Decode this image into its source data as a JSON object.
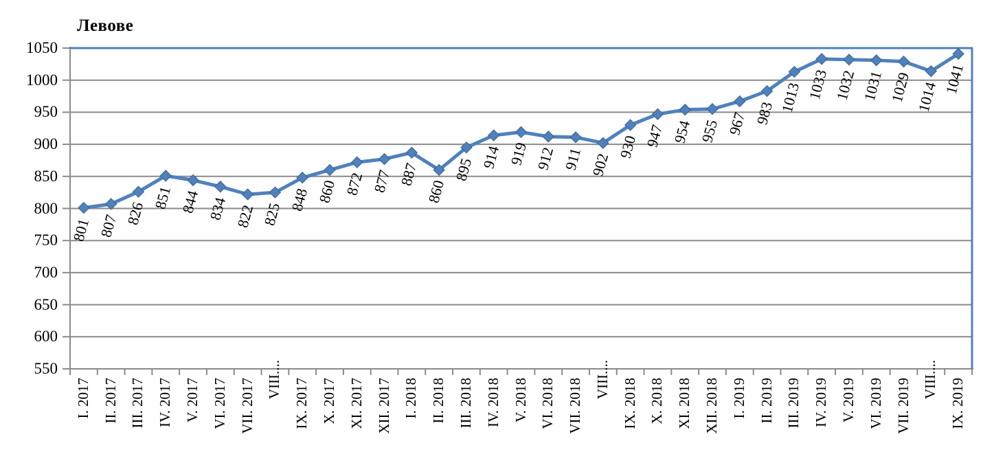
{
  "chart_data": {
    "type": "line",
    "title": "Левове",
    "categories": [
      "I. 2017",
      "II. 2017",
      "III. 2017",
      "IV. 2017",
      "V. 2017",
      "VI. 2017",
      "VII. 2017",
      "VIII....",
      "IX. 2017",
      "X. 2017",
      "XI. 2017",
      "XII. 2017",
      "I. 2018",
      "II. 2018",
      "III. 2018",
      "IV. 2018",
      "V. 2018",
      "VI. 2018",
      "VII. 2018",
      "VIII....",
      "IX. 2018",
      "X. 2018",
      "XI. 2018",
      "XII. 2018",
      "I. 2019",
      "II. 2019",
      "III. 2019",
      "IV. 2019",
      "V. 2019",
      "VI. 2019",
      "VII. 2019",
      "VIII....",
      "IX. 2019"
    ],
    "values": [
      801,
      807,
      826,
      851,
      844,
      834,
      822,
      825,
      848,
      860,
      872,
      877,
      887,
      860,
      895,
      914,
      919,
      912,
      911,
      902,
      930,
      947,
      954,
      955,
      967,
      983,
      1013,
      1033,
      1032,
      1031,
      1029,
      1014,
      1041
    ],
    "xlabel": "",
    "ylabel": "",
    "ylim": [
      550,
      1050
    ],
    "ytick_step": 50,
    "yticks": [
      550,
      600,
      650,
      700,
      750,
      800,
      850,
      900,
      950,
      1000,
      1050
    ],
    "grid": true,
    "legend_position": "none",
    "data_labels": "rotated, below points",
    "marker": "diamond",
    "colors": {
      "series": "#4f81bd",
      "marker_edge": "#3a648f",
      "plot_border": "#4f81bd",
      "gridline": "#8a8a8a",
      "axis": "#8a8a8a",
      "text": "#000000"
    }
  }
}
